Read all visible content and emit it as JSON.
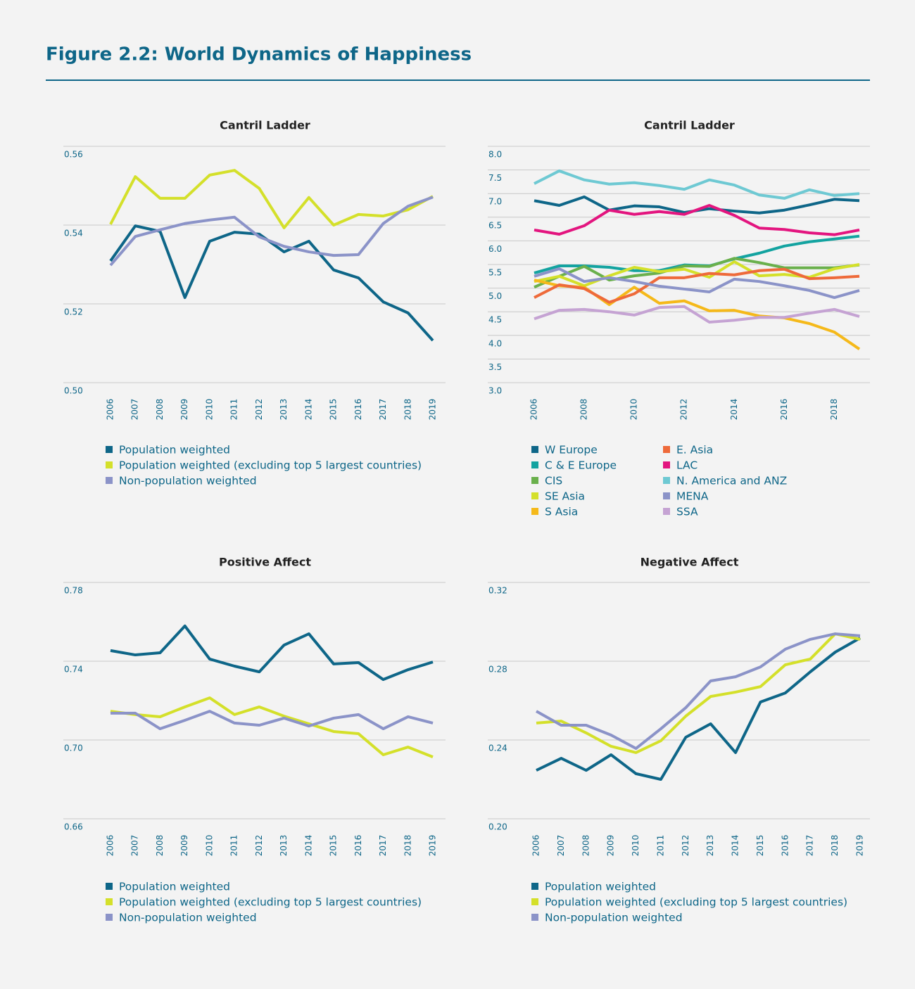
{
  "title": "Figure 2.2: World Dynamics of Happiness",
  "chart_data": [
    {
      "type": "line",
      "title": "Cantril Ladder",
      "x": [
        2006,
        2007,
        2008,
        2009,
        2010,
        2011,
        2012,
        2013,
        2014,
        2015,
        2016,
        2017,
        2018,
        2019
      ],
      "xlim": [
        2006,
        2019
      ],
      "xticks": [
        2006,
        2007,
        2008,
        2009,
        2010,
        2011,
        2012,
        2013,
        2014,
        2015,
        2016,
        2017,
        2018,
        2019
      ],
      "ylim": [
        0.5,
        0.56
      ],
      "yticks": [
        {
          "value": 0.5,
          "label": "0.50"
        },
        0.52,
        0.54,
        0.56
      ],
      "grid": true,
      "series": [
        {
          "name": "Population weighted",
          "color": "#0e6688",
          "values": [
            0.5309,
            0.5398,
            0.5384,
            0.5216,
            0.5359,
            0.5382,
            0.5377,
            0.5332,
            0.5359,
            0.5286,
            0.5266,
            0.5205,
            0.5177,
            0.5107
          ]
        },
        {
          "name": "Population weighted (excluding top 5 largest countries)",
          "color": "#d4e02a",
          "values": [
            0.5402,
            0.5523,
            0.5468,
            0.5468,
            0.5527,
            0.5539,
            0.5493,
            0.5393,
            0.547,
            0.54,
            0.5427,
            0.5423,
            0.5439,
            0.5473
          ]
        },
        {
          "name": "Non-population weighted",
          "color": "#8b93c8",
          "values": [
            0.5298,
            0.5371,
            0.5388,
            0.5404,
            0.5413,
            0.542,
            0.537,
            0.5346,
            0.5332,
            0.5323,
            0.5325,
            0.5404,
            0.5448,
            0.5471
          ]
        }
      ]
    },
    {
      "type": "line",
      "title": "Cantril Ladder",
      "x": [
        2006,
        2007,
        2008,
        2009,
        2010,
        2011,
        2012,
        2013,
        2014,
        2015,
        2016,
        2017,
        2018,
        2019
      ],
      "xlim": [
        2006,
        2019
      ],
      "xticks": [
        2006,
        2008,
        2010,
        2012,
        2014,
        2016,
        2018
      ],
      "ylim": [
        3,
        8
      ],
      "yticks": [
        {
          "value": 3,
          "label": "3.0"
        },
        3.5,
        {
          "value": 4,
          "label": "4.0"
        },
        4.5,
        {
          "value": 5,
          "label": "5.0"
        },
        5.5,
        {
          "value": 6,
          "label": "6.0"
        },
        6.5,
        {
          "value": 7,
          "label": "7.0"
        },
        7.5,
        {
          "value": 8,
          "label": "8.0"
        }
      ],
      "grid": true,
      "series": [
        {
          "name": "W Europe",
          "color": "#0e6688",
          "values": [
            6.85,
            6.75,
            6.93,
            6.65,
            6.74,
            6.72,
            6.6,
            6.68,
            6.63,
            6.59,
            6.65,
            6.76,
            6.88,
            6.85
          ]
        },
        {
          "name": "C & E Europe",
          "color": "#13a3a0",
          "values": [
            5.32,
            5.47,
            5.47,
            5.44,
            5.37,
            5.37,
            5.49,
            5.47,
            5.62,
            5.74,
            5.89,
            5.98,
            6.04,
            6.1
          ]
        },
        {
          "name": "CIS",
          "color": "#6ab04c",
          "values": [
            5.02,
            5.25,
            5.46,
            5.17,
            5.26,
            5.32,
            5.47,
            5.46,
            5.63,
            5.54,
            5.43,
            5.43,
            5.43,
            5.49
          ]
        },
        {
          "name": "SE Asia",
          "color": "#d4e02a",
          "values": [
            5.14,
            5.25,
            5.05,
            5.26,
            5.44,
            5.35,
            5.4,
            5.23,
            5.56,
            5.26,
            5.29,
            5.23,
            5.41,
            5.5
          ]
        },
        {
          "name": "S Asia",
          "color": "#f5b91a",
          "values": [
            5.17,
            5.05,
            5.02,
            4.65,
            5.02,
            4.68,
            4.73,
            4.52,
            4.53,
            4.41,
            4.37,
            4.25,
            4.07,
            3.71
          ]
        },
        {
          "name": "E. Asia",
          "color": "#ee6a3a",
          "values": [
            4.8,
            5.07,
            4.99,
            4.7,
            4.88,
            5.22,
            5.22,
            5.31,
            5.28,
            5.37,
            5.4,
            5.2,
            5.22,
            5.25
          ]
        },
        {
          "name": "LAC",
          "color": "#e3157f",
          "values": [
            6.23,
            6.14,
            6.32,
            6.65,
            6.56,
            6.62,
            6.56,
            6.75,
            6.54,
            6.27,
            6.24,
            6.17,
            6.13,
            6.23
          ]
        },
        {
          "name": "N. America and ANZ",
          "color": "#6ec9d3",
          "values": [
            7.21,
            7.48,
            7.29,
            7.2,
            7.23,
            7.17,
            7.09,
            7.29,
            7.18,
            6.97,
            6.9,
            7.08,
            6.96,
            7.0
          ]
        },
        {
          "name": "MENA",
          "color": "#8b93c8",
          "values": [
            5.25,
            5.41,
            5.14,
            5.22,
            5.14,
            5.04,
            4.98,
            4.92,
            5.19,
            5.14,
            5.05,
            4.95,
            4.8,
            4.95
          ]
        },
        {
          "name": "SSA",
          "color": "#c5a3d3",
          "values": [
            4.35,
            4.53,
            4.55,
            4.5,
            4.43,
            4.59,
            4.61,
            4.28,
            4.32,
            4.38,
            4.38,
            4.47,
            4.55,
            4.4
          ]
        }
      ]
    },
    {
      "type": "line",
      "title": "Positive Affect",
      "x": [
        2006,
        2007,
        2008,
        2009,
        2010,
        2011,
        2012,
        2013,
        2014,
        2015,
        2016,
        2017,
        2018,
        2019
      ],
      "xlim": [
        2006,
        2019
      ],
      "xticks": [
        2006,
        2007,
        2008,
        2009,
        2010,
        2011,
        2012,
        2013,
        2014,
        2015,
        2016,
        2017,
        2018,
        2019
      ],
      "ylim": [
        0.66,
        0.78
      ],
      "yticks": [
        0.66,
        {
          "value": 0.7,
          "label": "0.70"
        },
        0.74,
        0.78
      ],
      "grid": true,
      "series": [
        {
          "name": "Population weighted",
          "color": "#0e6688",
          "values": [
            0.7454,
            0.7432,
            0.7443,
            0.7579,
            0.7411,
            0.7375,
            0.7346,
            0.7482,
            0.7539,
            0.7386,
            0.7393,
            0.7307,
            0.7357,
            0.7396
          ]
        },
        {
          "name": "Population weighted (excluding top 5 largest countries)",
          "color": "#d4e02a",
          "values": [
            0.7146,
            0.7129,
            0.7118,
            0.7168,
            0.7214,
            0.7129,
            0.7168,
            0.7121,
            0.7082,
            0.7043,
            0.7032,
            0.6925,
            0.6964,
            0.6914
          ]
        },
        {
          "name": "Non-population weighted",
          "color": "#8b93c8",
          "values": [
            0.7136,
            0.7136,
            0.7057,
            0.71,
            0.7146,
            0.7086,
            0.7075,
            0.7111,
            0.7071,
            0.7111,
            0.7129,
            0.7057,
            0.7118,
            0.7086
          ]
        }
      ]
    },
    {
      "type": "line",
      "title": "Negative Affect",
      "x": [
        2006,
        2007,
        2008,
        2009,
        2010,
        2011,
        2012,
        2013,
        2014,
        2015,
        2016,
        2017,
        2018,
        2019
      ],
      "xlim": [
        2006,
        2019
      ],
      "xticks": [
        2006,
        2007,
        2008,
        2009,
        2010,
        2011,
        2012,
        2013,
        2014,
        2015,
        2016,
        2017,
        2018,
        2019
      ],
      "ylim": [
        0.2,
        0.32
      ],
      "yticks": [
        {
          "value": 0.2,
          "label": "0.20"
        },
        0.24,
        0.28,
        0.32
      ],
      "grid": true,
      "series": [
        {
          "name": "Population weighted",
          "color": "#0e6688",
          "values": [
            0.2246,
            0.2307,
            0.2246,
            0.2325,
            0.2229,
            0.22,
            0.2414,
            0.2482,
            0.2336,
            0.2593,
            0.2639,
            0.2746,
            0.2846,
            0.2918
          ]
        },
        {
          "name": "Population weighted (excluding top 5 largest countries)",
          "color": "#d4e02a",
          "values": [
            0.2486,
            0.2496,
            0.2436,
            0.2368,
            0.2336,
            0.2396,
            0.2521,
            0.2621,
            0.2643,
            0.2671,
            0.2782,
            0.2811,
            0.2939,
            0.2911
          ]
        },
        {
          "name": "Non-population weighted",
          "color": "#8b93c8",
          "values": [
            0.2546,
            0.2475,
            0.2475,
            0.2425,
            0.2357,
            0.2457,
            0.2564,
            0.27,
            0.2721,
            0.2771,
            0.2861,
            0.2911,
            0.2939,
            0.2929
          ]
        }
      ]
    }
  ]
}
